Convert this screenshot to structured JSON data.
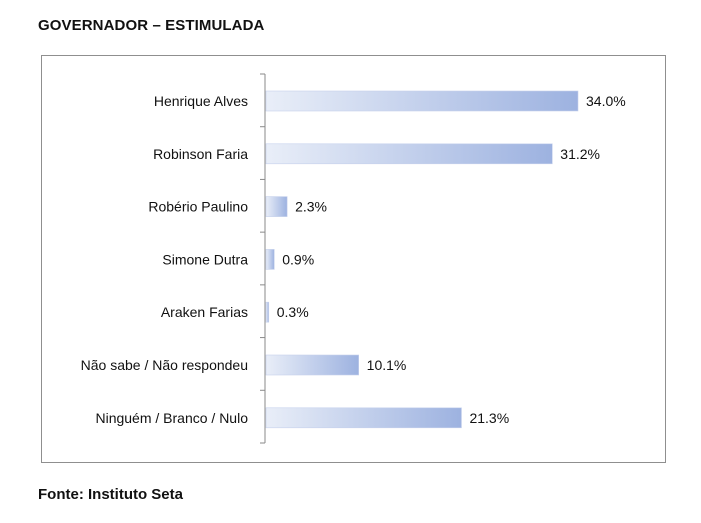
{
  "header": {
    "title": "GOVERNADOR – ESTIMULADA"
  },
  "footer": {
    "source": "Fonte: Instituto Seta"
  },
  "chart_data": {
    "type": "bar",
    "orientation": "horizontal",
    "title": "GOVERNADOR – ESTIMULADA",
    "categories": [
      "Henrique Alves",
      "Robinson Faria",
      "Robério Paulino",
      "Simone Dutra",
      "Araken Farias",
      "Não sabe / Não respondeu",
      "Ninguém / Branco / Nulo"
    ],
    "values": [
      34.0,
      31.2,
      2.3,
      0.9,
      0.3,
      10.1,
      21.3
    ],
    "value_labels": [
      "34.0%",
      "31.2%",
      "2.3%",
      "0.9%",
      "0.3%",
      "10.1%",
      "21.3%"
    ],
    "xlim": [
      0,
      34.0
    ],
    "grid": false,
    "legend": "none",
    "colors": {
      "bar_start": "#e9eef8",
      "bar_end": "#9db2e0",
      "bar_edge": "#c6d1ec",
      "axis": "#8a8a8a"
    }
  }
}
